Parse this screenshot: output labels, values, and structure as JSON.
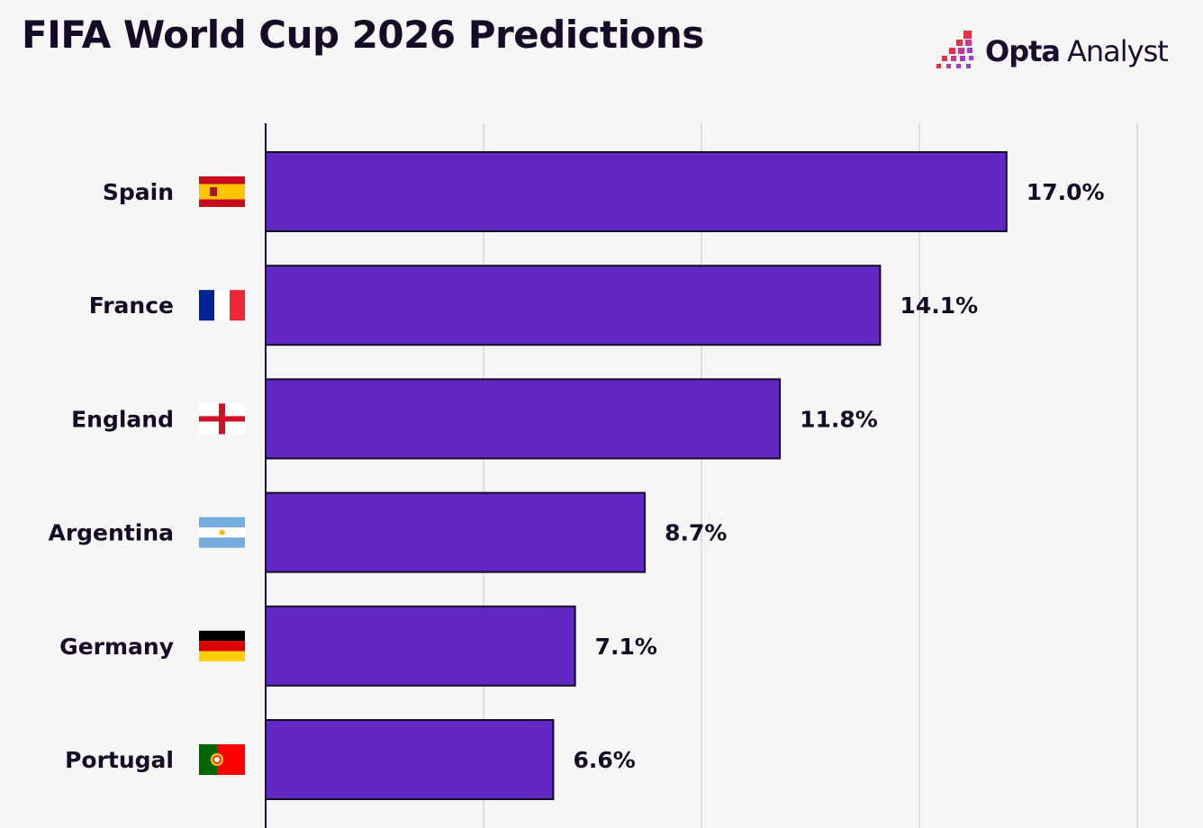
{
  "title": "FIFA World Cup 2026 Predictions",
  "logo": {
    "brand_bold": "Opta",
    "brand_light": "Analyst"
  },
  "colors": {
    "bar": "#6228c4",
    "bar_stroke": "#160b26",
    "grid": "#dedede",
    "background": "#f6f6f6"
  },
  "chart_data": {
    "type": "bar",
    "orientation": "horizontal",
    "categories": [
      "Spain",
      "France",
      "England",
      "Argentina",
      "Germany",
      "Portugal"
    ],
    "values": [
      17.0,
      14.1,
      11.8,
      8.7,
      7.1,
      6.6
    ],
    "labels": [
      "17.0%",
      "14.1%",
      "11.8%",
      "8.7%",
      "7.1%",
      "6.6%"
    ],
    "flags": [
      "spain-flag",
      "france-flag",
      "england-flag",
      "argentina-flag",
      "germany-flag",
      "portugal-flag"
    ],
    "xlim": [
      0,
      20
    ],
    "grid_ticks": [
      5,
      10,
      15,
      20
    ],
    "grid": true,
    "unit": "%"
  }
}
